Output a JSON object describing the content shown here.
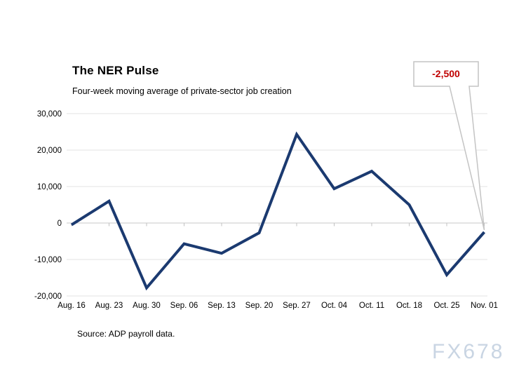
{
  "page": {
    "title": "The NER Pulse",
    "subtitle": "Four-week moving average of private-sector job creation",
    "source": "Source: ADP payroll data.",
    "watermark": "FX678"
  },
  "chart_data": {
    "type": "line",
    "title": "The NER Pulse",
    "subtitle": "Four-week moving average of private-sector job creation",
    "categories": [
      "Aug. 16",
      "Aug. 23",
      "Aug. 30",
      "Sep. 06",
      "Sep. 13",
      "Sep. 20",
      "Sep. 27",
      "Oct. 04",
      "Oct. 11",
      "Oct. 18",
      "Oct. 25",
      "Nov. 01"
    ],
    "values": [
      -500,
      6000,
      -17800,
      -5700,
      -8300,
      -2700,
      24300,
      9400,
      14200,
      5000,
      -14200,
      -2500
    ],
    "xlabel": "",
    "ylabel": "",
    "ylim": [
      -20000,
      30000
    ],
    "y_ticks": [
      30000,
      20000,
      10000,
      0,
      -10000,
      -20000
    ],
    "y_tick_labels": [
      "30,000",
      "20,000",
      "10,000",
      "0",
      "-10,000",
      "-20,000"
    ],
    "grid": true,
    "legend": false,
    "line_color": "#1b3a70",
    "gridline_color": "#e3e3e3",
    "zero_axis_color": "#c9c9c9",
    "annotation": {
      "text": "-2,500",
      "color": "#c00000",
      "target_category": "Nov. 01",
      "target_value": -2500,
      "box_border_color": "#c4c4c4"
    }
  }
}
